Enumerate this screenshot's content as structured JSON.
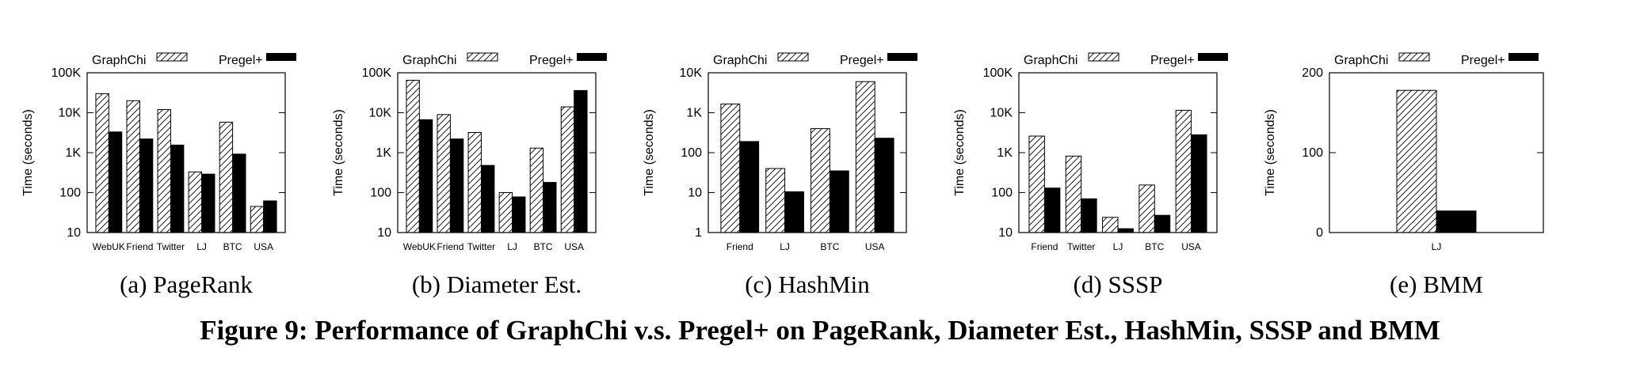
{
  "figure_caption": "Figure 9: Performance of GraphChi v.s. Pregel+ on PageRank, Diameter Est., HashMin, SSSP and BMM",
  "colors": {
    "graphchi_hatch": "#000000",
    "pregel_fill": "#000000",
    "background": "#ffffff"
  },
  "chart_data": [
    {
      "type": "bar",
      "subcaption": "(a) PageRank",
      "ylabel": "Time (seconds)",
      "yscale": "log",
      "ylim": [
        10,
        100000
      ],
      "yticks": [
        "10",
        "100",
        "1K",
        "10K",
        "100K"
      ],
      "categories": [
        "WebUK",
        "Friend",
        "Twitter",
        "LJ",
        "BTC",
        "USA"
      ],
      "legend": "top",
      "series": [
        {
          "name": "GraphChi",
          "style": "hatch",
          "values": [
            30000,
            20000,
            12000,
            330,
            5800,
            45
          ]
        },
        {
          "name": "Pregel+",
          "style": "solid",
          "values": [
            3300,
            2200,
            1550,
            290,
            920,
            62
          ]
        }
      ]
    },
    {
      "type": "bar",
      "subcaption": "(b) Diameter Est.",
      "ylabel": "Time (seconds)",
      "yscale": "log",
      "ylim": [
        10,
        100000
      ],
      "yticks": [
        "10",
        "100",
        "1K",
        "10K",
        "100K"
      ],
      "categories": [
        "WebUK",
        "Friend",
        "Twitter",
        "LJ",
        "BTC",
        "USA"
      ],
      "legend": "top",
      "series": [
        {
          "name": "GraphChi",
          "style": "hatch",
          "values": [
            65000,
            9000,
            3200,
            100,
            1300,
            14000
          ]
        },
        {
          "name": "Pregel+",
          "style": "solid",
          "values": [
            6700,
            2200,
            480,
            78,
            180,
            36000
          ]
        }
      ]
    },
    {
      "type": "bar",
      "subcaption": "(c) HashMin",
      "ylabel": "Time (seconds)",
      "yscale": "log",
      "ylim": [
        1,
        10000
      ],
      "yticks": [
        "1",
        "10",
        "100",
        "1K",
        "10K"
      ],
      "categories": [
        "Friend",
        "LJ",
        "BTC",
        "USA"
      ],
      "legend": "top",
      "series": [
        {
          "name": "GraphChi",
          "style": "hatch",
          "values": [
            1650,
            40,
            400,
            6000
          ]
        },
        {
          "name": "Pregel+",
          "style": "solid",
          "values": [
            190,
            10.5,
            35,
            230
          ]
        }
      ]
    },
    {
      "type": "bar",
      "subcaption": "(d) SSSP",
      "ylabel": "Time (seconds)",
      "yscale": "log",
      "ylim": [
        10,
        100000
      ],
      "yticks": [
        "10",
        "100",
        "1K",
        "10K",
        "100K"
      ],
      "categories": [
        "Friend",
        "Twitter",
        "LJ",
        "BTC",
        "USA"
      ],
      "legend": "top",
      "series": [
        {
          "name": "GraphChi",
          "style": "hatch",
          "values": [
            2600,
            820,
            24,
            155,
            11500
          ]
        },
        {
          "name": "Pregel+",
          "style": "solid",
          "values": [
            130,
            70,
            12.5,
            27,
            2800
          ]
        }
      ]
    },
    {
      "type": "bar",
      "subcaption": "(e) BMM",
      "ylabel": "Time (seconds)",
      "yscale": "linear",
      "ylim": [
        0,
        200
      ],
      "yticks": [
        "0",
        "100",
        "200"
      ],
      "categories": [
        "LJ"
      ],
      "legend": "top",
      "series": [
        {
          "name": "GraphChi",
          "style": "hatch",
          "values": [
            178
          ]
        },
        {
          "name": "Pregel+",
          "style": "solid",
          "values": [
            27
          ]
        }
      ]
    }
  ]
}
